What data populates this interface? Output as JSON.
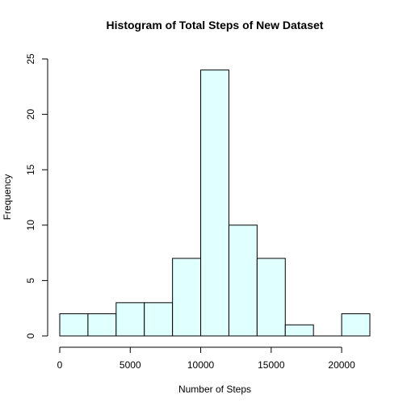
{
  "chart_data": {
    "type": "bar",
    "title": "Histogram of Total Steps of New Dataset",
    "xlabel": "Number of Steps",
    "ylabel": "Frequency",
    "bin_edges": [
      0,
      2000,
      4000,
      6000,
      8000,
      10000,
      12000,
      14000,
      16000,
      18000,
      20000,
      22000
    ],
    "values": [
      2,
      2,
      3,
      3,
      7,
      24,
      10,
      7,
      1,
      0,
      2
    ],
    "xlim": [
      0,
      22000
    ],
    "ylim": [
      0,
      25
    ],
    "x_ticks": [
      0,
      5000,
      10000,
      15000,
      20000
    ],
    "x_tick_labels": [
      "0",
      "5000",
      "10000",
      "15000",
      "20000"
    ],
    "y_ticks": [
      0,
      5,
      10,
      15,
      20,
      25
    ],
    "y_tick_labels": [
      "0",
      "5",
      "10",
      "15",
      "20",
      "25"
    ],
    "bar_color": "#E0FFFF",
    "grid": false,
    "legend": "none"
  }
}
